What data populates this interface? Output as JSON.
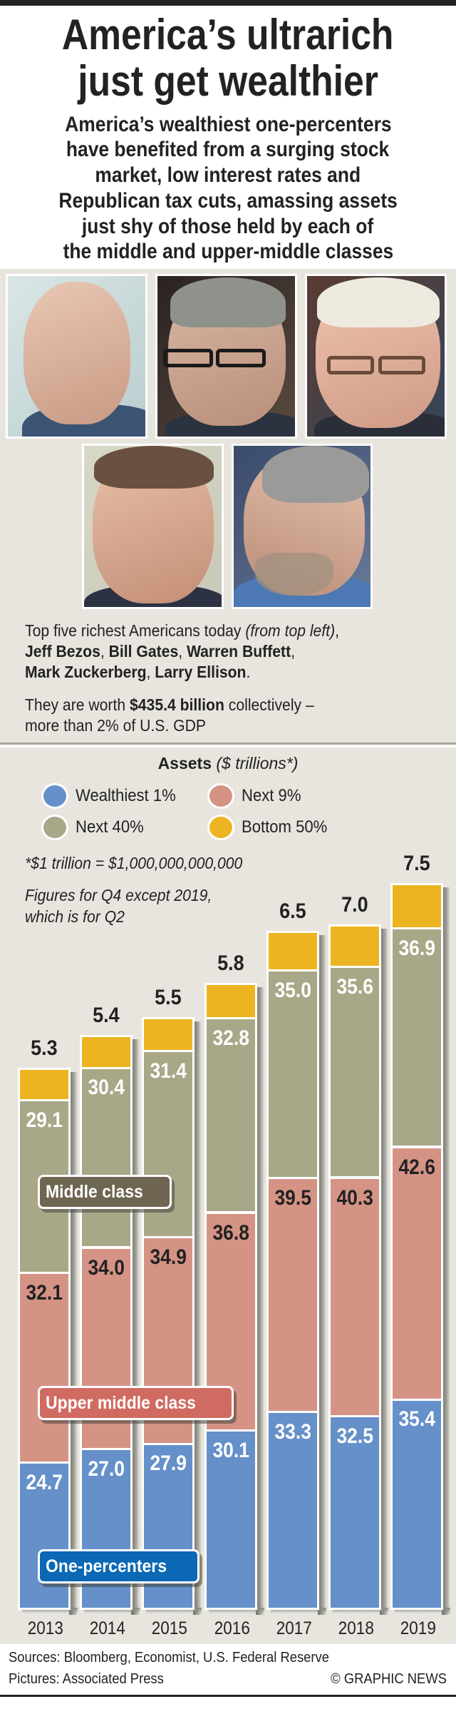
{
  "header": {
    "title_lines": [
      "America’s ultrarich",
      "just get wealthier"
    ],
    "subtitle_lines": [
      "America’s wealthiest one-percenters",
      "have benefited from a surging stock",
      "market, low interest rates and",
      "Republican tax cuts, amassing assets",
      "just shy of those held by each of",
      "the middle and upper-middle classes"
    ]
  },
  "photos": [
    {
      "icon": "portrait-photo"
    },
    {
      "icon": "portrait-photo"
    },
    {
      "icon": "portrait-photo"
    },
    {
      "icon": "portrait-photo"
    },
    {
      "icon": "portrait-photo"
    }
  ],
  "caption": {
    "line1_plain": "Top five richest Americans today ",
    "line1_italic": "(from top left)",
    "line1_end": ",",
    "names": [
      "Jeff Bezos",
      "Bill Gates",
      "Warren Buffett",
      "Mark Zuckerberg",
      "Larry Ellison"
    ],
    "sep": ", ",
    "end": ".",
    "worth_pre": "They are worth ",
    "worth_bold": "$435.4 billion",
    "worth_post": " collectively –",
    "worth_line2": "more than 2% of U.S. GDP"
  },
  "chart_data": {
    "type": "bar",
    "stacked": true,
    "title": "Assets",
    "title_unit": "($ trillions*)",
    "footnote": "*$1 trillion = $1,000,000,000,000",
    "note_lines": [
      "Figures for Q4 except 2019,",
      "which is for Q2"
    ],
    "categories": [
      "2013",
      "2014",
      "2015",
      "2016",
      "2017",
      "2018",
      "2019"
    ],
    "series": [
      {
        "name": "Wealthiest 1%",
        "color": "#6590C9",
        "label_color": "#ffffff",
        "values": [
          24.7,
          27.0,
          27.9,
          30.1,
          33.3,
          32.5,
          35.4
        ]
      },
      {
        "name": "Next 9%",
        "color": "#D59385",
        "label_color": "#222222",
        "values": [
          32.1,
          34.0,
          34.9,
          36.8,
          39.5,
          40.3,
          42.6
        ]
      },
      {
        "name": "Next 40%",
        "color": "#A8A888",
        "label_color": "#ffffff",
        "values": [
          29.1,
          30.4,
          31.4,
          32.8,
          35.0,
          35.6,
          36.9
        ]
      },
      {
        "name": "Bottom 50%",
        "color": "#EDB422",
        "label_color": "#222222",
        "values": [
          5.3,
          5.4,
          5.5,
          5.8,
          6.5,
          7.0,
          7.5
        ],
        "label_position": "above"
      }
    ],
    "legend_order": [
      0,
      1,
      2,
      3
    ],
    "legend_position": "top",
    "annotations": [
      {
        "text": "Middle class",
        "series": "Next 40%",
        "color": "#6E6650"
      },
      {
        "text": "Upper middle class",
        "series": "Next 9%",
        "color": "#D06B62"
      },
      {
        "text": "One-percenters",
        "series": "Wealthiest 1%",
        "color": "#0A68B5"
      }
    ],
    "xlabel": "",
    "ylabel": "",
    "grid": false
  },
  "footer": {
    "sources": "Sources: Bloomberg, Economist, U.S. Federal Reserve",
    "pictures": "Pictures: Associated Press",
    "credit": "© GRAPHIC NEWS"
  }
}
